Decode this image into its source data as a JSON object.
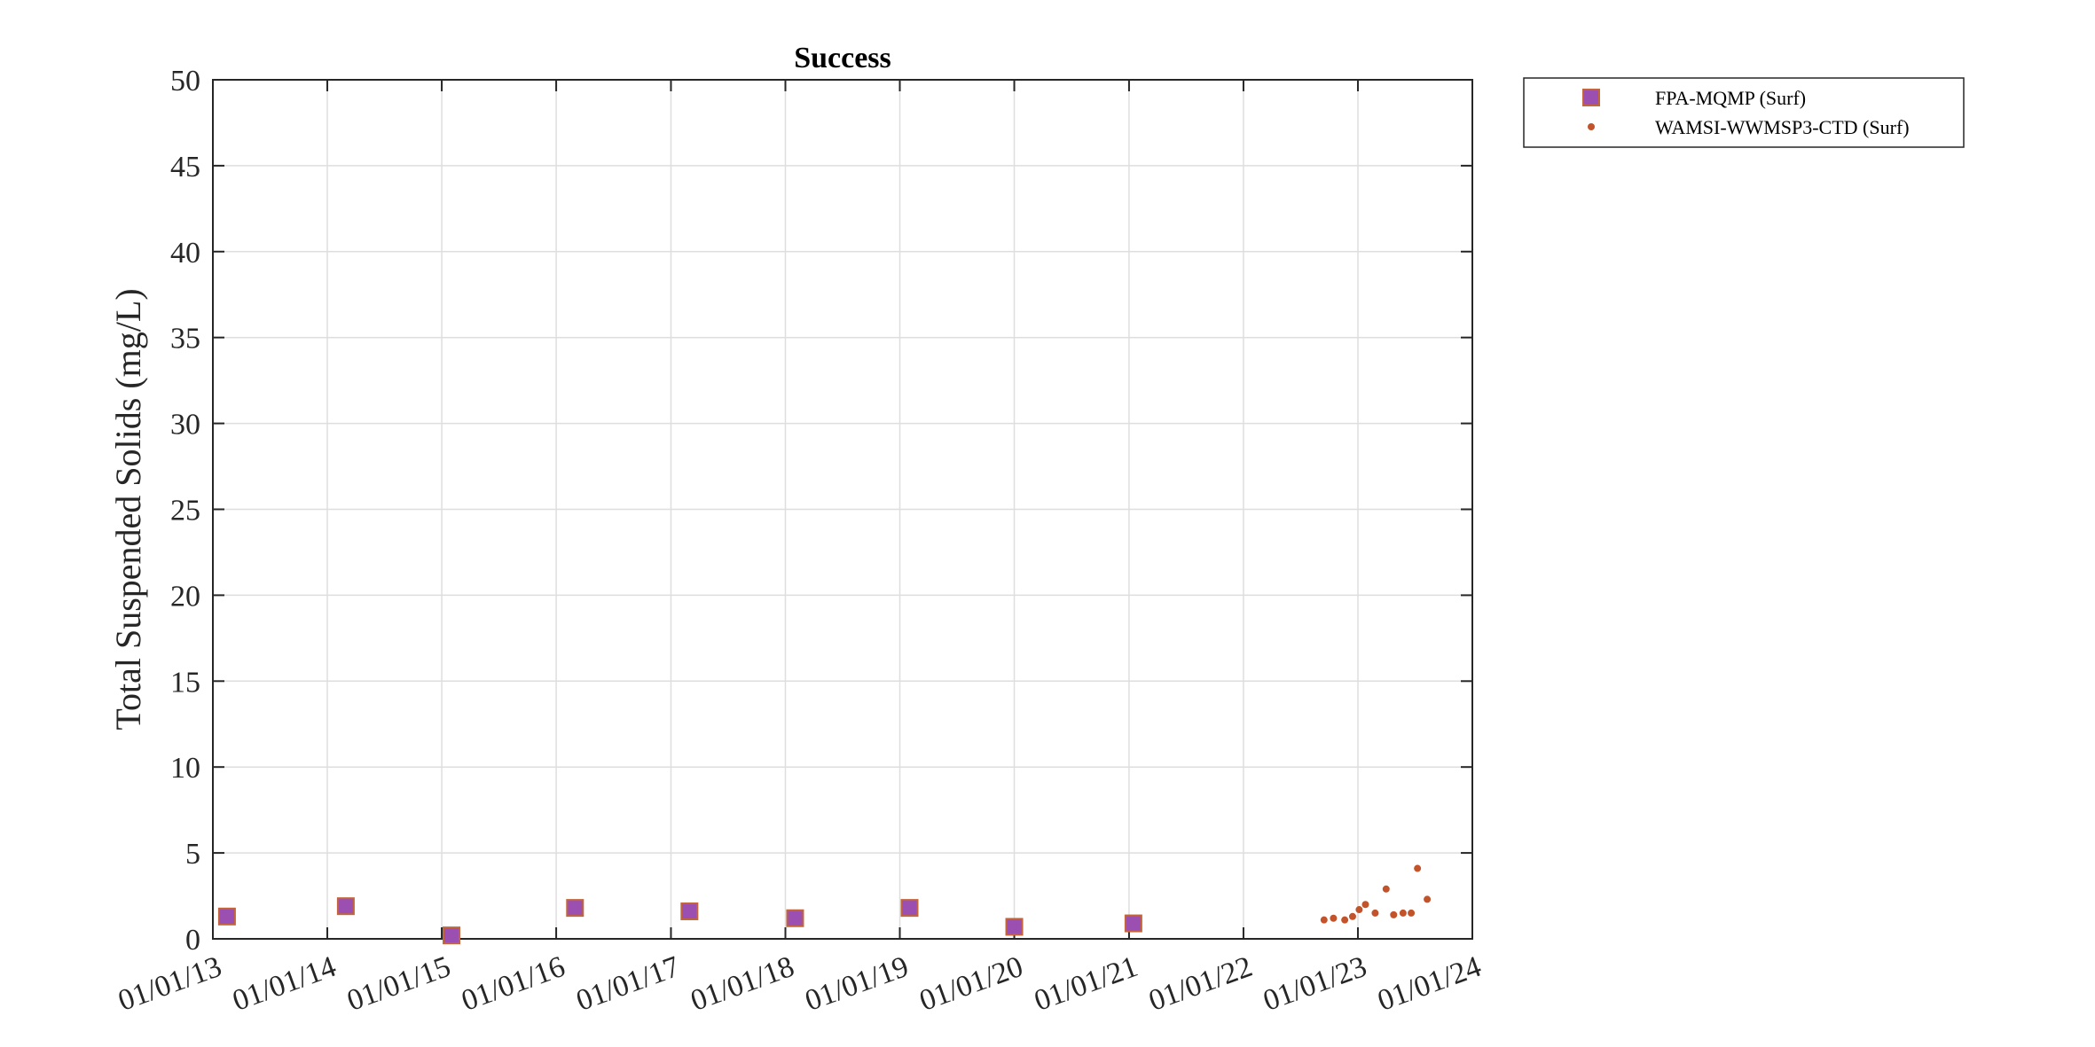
{
  "chart_data": {
    "type": "scatter",
    "title": "Success",
    "xlabel": "",
    "ylabel": "Total Suspended Solids (mg/L)",
    "xlim": [
      "2013-01-01",
      "2024-01-01"
    ],
    "ylim": [
      0,
      50
    ],
    "xticks": [
      "2013-01-01",
      "2014-01-01",
      "2015-01-01",
      "2016-01-01",
      "2017-01-01",
      "2018-01-01",
      "2019-01-01",
      "2020-01-01",
      "2021-01-01",
      "2022-01-01",
      "2023-01-01",
      "2024-01-01"
    ],
    "xtick_labels": [
      "01/01/13",
      "01/01/14",
      "01/01/15",
      "01/01/16",
      "01/01/17",
      "01/01/18",
      "01/01/19",
      "01/01/20",
      "01/01/21",
      "01/01/22",
      "01/01/23",
      "01/01/24"
    ],
    "yticks": [
      0,
      5,
      10,
      15,
      20,
      25,
      30,
      35,
      40,
      45,
      50
    ],
    "ytick_labels": [
      "0",
      "5",
      "10",
      "15",
      "20",
      "25",
      "30",
      "35",
      "40",
      "45",
      "50"
    ],
    "grid": true,
    "legend_position": "outside-top-right",
    "series": [
      {
        "name": "FPA-MQMP (Surf)",
        "marker": "square",
        "fill_color": "#9b4fb0",
        "edge_color": "#c2653a",
        "points": [
          {
            "x": "2013-02-15",
            "y": 1.3
          },
          {
            "x": "2014-03-01",
            "y": 1.9
          },
          {
            "x": "2015-02-01",
            "y": 0.2
          },
          {
            "x": "2016-03-01",
            "y": 1.8
          },
          {
            "x": "2017-03-01",
            "y": 1.6
          },
          {
            "x": "2018-02-01",
            "y": 1.2
          },
          {
            "x": "2019-02-01",
            "y": 1.8
          },
          {
            "x": "2020-01-01",
            "y": 0.7
          },
          {
            "x": "2021-01-15",
            "y": 0.9
          }
        ]
      },
      {
        "name": "WAMSI-WWMSP3-CTD (Surf)",
        "marker": "dot",
        "fill_color": "#c2532a",
        "edge_color": "#c2532a",
        "points": [
          {
            "x": "2022-09-15",
            "y": 1.1
          },
          {
            "x": "2022-10-15",
            "y": 1.2
          },
          {
            "x": "2022-11-20",
            "y": 1.1
          },
          {
            "x": "2022-12-15",
            "y": 1.3
          },
          {
            "x": "2023-01-05",
            "y": 1.7
          },
          {
            "x": "2023-01-25",
            "y": 2.0
          },
          {
            "x": "2023-02-25",
            "y": 1.5
          },
          {
            "x": "2023-04-01",
            "y": 2.9
          },
          {
            "x": "2023-04-25",
            "y": 1.4
          },
          {
            "x": "2023-05-25",
            "y": 1.5
          },
          {
            "x": "2023-06-20",
            "y": 1.5
          },
          {
            "x": "2023-07-10",
            "y": 4.1
          },
          {
            "x": "2023-08-10",
            "y": 2.3
          }
        ]
      }
    ]
  },
  "colors": {
    "axis": "#262626",
    "grid": "#dedede",
    "background": "#ffffff"
  }
}
